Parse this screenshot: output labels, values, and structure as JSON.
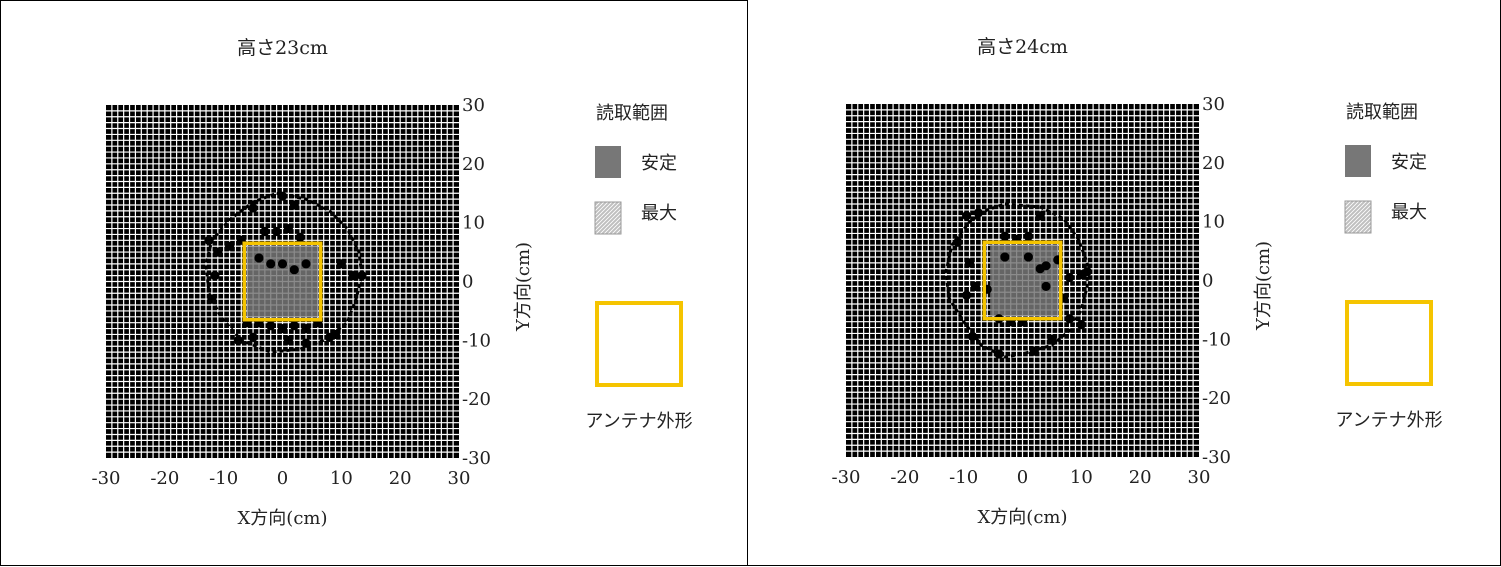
{
  "colors": {
    "grid_bg": "#000000",
    "grid_line": "#ffffff",
    "stable_fill": "#777777",
    "max_fill": "#bfbfbf",
    "antenna": "#f5c400",
    "dot": "#000000"
  },
  "legend": {
    "title": "読取範囲",
    "stable_label": "安定",
    "max_label": "最大",
    "antenna_label": "アンテナ外形"
  },
  "chart_data": [
    {
      "type": "scatter",
      "title": "高さ23cm",
      "xlabel": "X方向(cm)",
      "ylabel": "Y方向(cm)",
      "xlim": [
        -30,
        30
      ],
      "ylim": [
        -30,
        30
      ],
      "xticks": [
        "-30",
        "-20",
        "-10",
        "0",
        "10",
        "20",
        "30"
      ],
      "yticks": [
        "30",
        "20",
        "10",
        "0",
        "-10",
        "-20",
        "-30"
      ],
      "grid": true,
      "legend_position": "right",
      "antenna": {
        "x": [
          -6.5,
          6.5
        ],
        "y": [
          -6.5,
          6.5
        ]
      },
      "stable_region": {
        "x": [
          -6,
          6
        ],
        "y": [
          -6,
          6
        ]
      },
      "max_region_boundary": [
        [
          -1,
          15
        ],
        [
          4,
          14
        ],
        [
          8,
          12
        ],
        [
          11,
          9
        ],
        [
          13,
          5
        ],
        [
          13.5,
          1
        ],
        [
          12.5,
          -3
        ],
        [
          11,
          -7
        ],
        [
          7,
          -10
        ],
        [
          3,
          -11.5
        ],
        [
          -2,
          -12
        ],
        [
          -7,
          -10
        ],
        [
          -10.5,
          -6
        ],
        [
          -12.5,
          -2
        ],
        [
          -13,
          3
        ],
        [
          -12,
          7
        ],
        [
          -9,
          10.5
        ],
        [
          -5,
          13.5
        ]
      ],
      "points": [
        [
          -5,
          12.5
        ],
        [
          0,
          14.5
        ],
        [
          2,
          13
        ],
        [
          -12.5,
          7
        ],
        [
          -11,
          5
        ],
        [
          -9,
          6
        ],
        [
          -7,
          7
        ],
        [
          -3,
          8.5
        ],
        [
          -1,
          8.5
        ],
        [
          1,
          9
        ],
        [
          3,
          7.5
        ],
        [
          -4,
          4
        ],
        [
          -2,
          3
        ],
        [
          0,
          3
        ],
        [
          2,
          2
        ],
        [
          4,
          3
        ],
        [
          10,
          3
        ],
        [
          12,
          1
        ],
        [
          13.5,
          1
        ],
        [
          -11.5,
          1
        ],
        [
          -12,
          -3
        ],
        [
          -6,
          -7
        ],
        [
          -4,
          -7
        ],
        [
          -2,
          -7.5
        ],
        [
          0,
          -8
        ],
        [
          2,
          -7.5
        ],
        [
          4,
          -8
        ],
        [
          6,
          -7
        ],
        [
          -7.5,
          -10
        ],
        [
          -5,
          -9.5
        ],
        [
          1,
          -10
        ],
        [
          4,
          -10.5
        ],
        [
          8,
          -9.5
        ],
        [
          9,
          -9
        ]
      ]
    },
    {
      "type": "scatter",
      "title": "高さ24cm",
      "xlabel": "X方向(cm)",
      "ylabel": "Y方向(cm)",
      "xlim": [
        -30,
        30
      ],
      "ylim": [
        -30,
        30
      ],
      "xticks": [
        "-30",
        "-20",
        "-10",
        "0",
        "10",
        "20",
        "30"
      ],
      "yticks": [
        "30",
        "20",
        "10",
        "0",
        "-10",
        "-20",
        "-30"
      ],
      "grid": true,
      "legend_position": "right",
      "antenna": {
        "x": [
          -6.5,
          6.5
        ],
        "y": [
          -6.5,
          6.5
        ]
      },
      "stable_region": {
        "x": [
          -5.5,
          6
        ],
        "y": [
          -6,
          6
        ]
      },
      "max_region_boundary": [
        [
          -3,
          13
        ],
        [
          3,
          12.5
        ],
        [
          7,
          10.5
        ],
        [
          9.5,
          7
        ],
        [
          11,
          3
        ],
        [
          11,
          -1
        ],
        [
          10,
          -5
        ],
        [
          8,
          -8.5
        ],
        [
          5,
          -11
        ],
        [
          0,
          -12.5
        ],
        [
          -3,
          -13
        ],
        [
          -7,
          -11
        ],
        [
          -10,
          -7
        ],
        [
          -12.5,
          -3
        ],
        [
          -13,
          1.5
        ],
        [
          -12,
          6
        ],
        [
          -9,
          10
        ],
        [
          -6,
          12
        ]
      ],
      "points": [
        [
          -9.5,
          11
        ],
        [
          -7.5,
          11.5
        ],
        [
          3,
          11
        ],
        [
          -11,
          6.5
        ],
        [
          -9,
          3
        ],
        [
          -3,
          7.5
        ],
        [
          -1,
          7
        ],
        [
          1,
          7.5
        ],
        [
          -3,
          4
        ],
        [
          1,
          4
        ],
        [
          3,
          2
        ],
        [
          4,
          2.5
        ],
        [
          6,
          3.5
        ],
        [
          8,
          0.5
        ],
        [
          10,
          1
        ],
        [
          11,
          1.5
        ],
        [
          -9.5,
          -2.5
        ],
        [
          -8,
          -1
        ],
        [
          -6,
          -1.5
        ],
        [
          4,
          -1
        ],
        [
          7,
          -3
        ],
        [
          -4,
          -6.5
        ],
        [
          -2,
          -7
        ],
        [
          0,
          -7
        ],
        [
          8,
          -6.5
        ],
        [
          10,
          -7.5
        ],
        [
          -8.5,
          -9.5
        ],
        [
          -4,
          -12.5
        ],
        [
          2,
          -12
        ],
        [
          5,
          -10
        ]
      ]
    }
  ]
}
